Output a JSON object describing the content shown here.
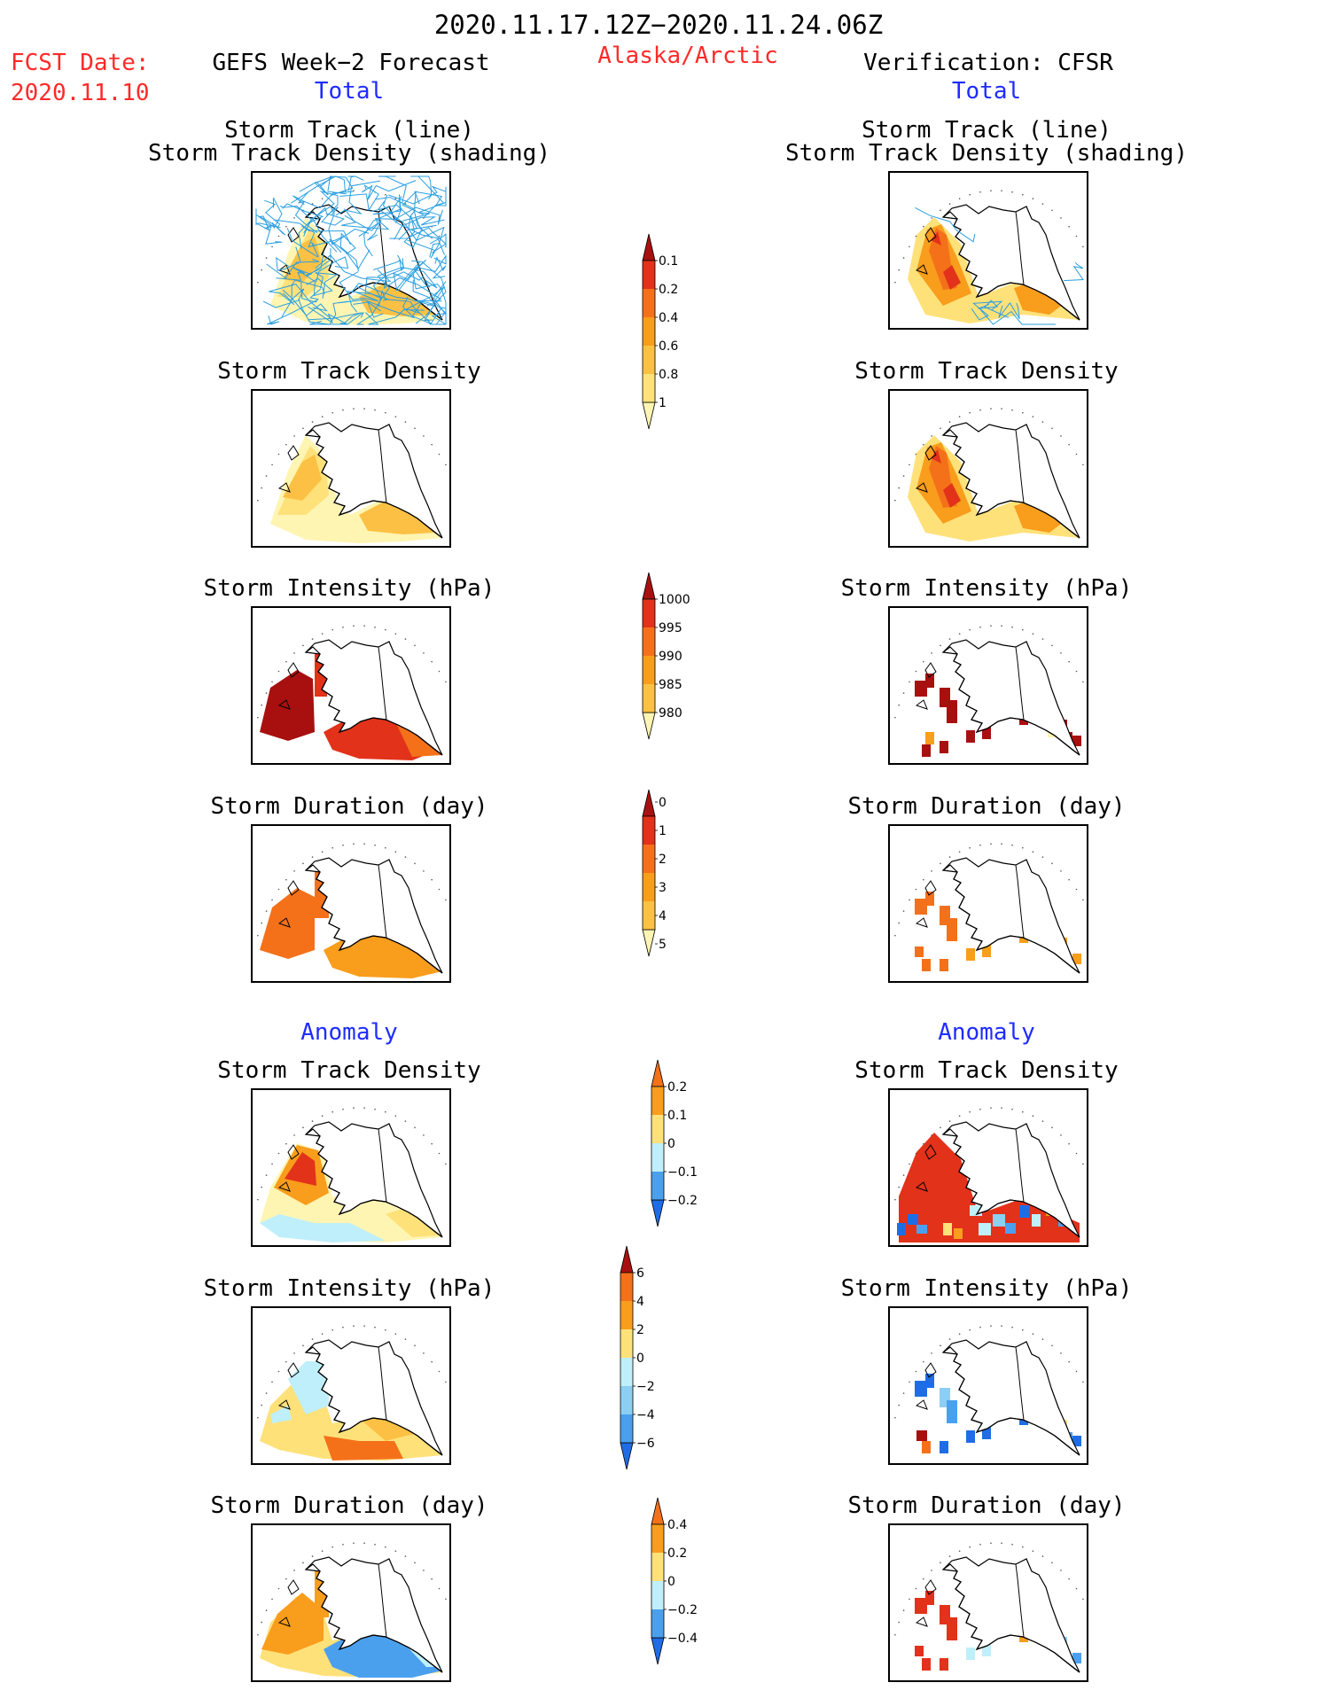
{
  "header": {
    "title": "2020.11.17.12Z−2020.11.24.06Z",
    "region": "Alaska/Arctic",
    "fcst_date_label": "FCST Date:",
    "fcst_date_value": "2020.11.10",
    "left_title": "GEFS Week−2 Forecast",
    "right_title": "Verification: CFSR",
    "left_total": "Total",
    "right_total": "Total",
    "left_anomaly": "Anomaly",
    "right_anomaly": "Anomaly"
  },
  "panel_titles": {
    "track_line": "Storm Track (line)",
    "track_shading": "Storm Track Density (shading)",
    "density": "Storm Track Density",
    "intensity": "Storm Intensity (hPa)",
    "duration": "Storm Duration (day)"
  },
  "colors": {
    "c1": "#fff5b3",
    "c2": "#ffe17a",
    "c3": "#fcc144",
    "c4": "#f99d1c",
    "c5": "#f4711a",
    "c6": "#e2321a",
    "c7": "#a81010",
    "b1": "#bfeffa",
    "b2": "#8ccff3",
    "b3": "#4ba0ee",
    "b4": "#1f6de6",
    "track": "#2a9fe0"
  },
  "chart_data": [
    {
      "type": "heatmap",
      "name": "density_colorbar",
      "ticks": [
        "0.1",
        "0.2",
        "0.4",
        "0.6",
        "0.8",
        "1"
      ],
      "colors": [
        "#fff5b3",
        "#ffe17a",
        "#fcc144",
        "#f99d1c",
        "#f4711a",
        "#e2321a",
        "#a81010"
      ]
    },
    {
      "type": "heatmap",
      "name": "intensity_colorbar",
      "ticks": [
        "1000",
        "995",
        "990",
        "985",
        "980"
      ],
      "colors": [
        "#fff5b3",
        "#fcc144",
        "#f99d1c",
        "#f4711a",
        "#e2321a",
        "#a81010"
      ]
    },
    {
      "type": "heatmap",
      "name": "duration_colorbar",
      "ticks": [
        "0",
        "1",
        "2",
        "3",
        "4",
        "5"
      ],
      "colors": [
        "#fff5b3",
        "#fcc144",
        "#f99d1c",
        "#f4711a",
        "#e2321a",
        "#a81010"
      ]
    },
    {
      "type": "heatmap",
      "name": "density_anomaly_colorbar",
      "ticks": [
        "0.2",
        "0.1",
        "0",
        "−0.1",
        "−0.2"
      ],
      "colors": [
        "#1f6de6",
        "#4ba0ee",
        "#bfeffa",
        "#ffe17a",
        "#f99d1c",
        "#f4711a"
      ]
    },
    {
      "type": "heatmap",
      "name": "intensity_anomaly_colorbar",
      "ticks": [
        "6",
        "4",
        "2",
        "0",
        "−2",
        "−4",
        "−6"
      ],
      "colors": [
        "#1f6de6",
        "#4ba0ee",
        "#8ccff3",
        "#bfeffa",
        "#ffe17a",
        "#f99d1c",
        "#f4711a",
        "#a81010"
      ]
    },
    {
      "type": "heatmap",
      "name": "duration_anomaly_colorbar",
      "ticks": [
        "0.4",
        "0.2",
        "0",
        "−0.2",
        "−0.4"
      ],
      "colors": [
        "#1f6de6",
        "#4ba0ee",
        "#bfeffa",
        "#ffe17a",
        "#f99d1c",
        "#f4711a"
      ]
    }
  ]
}
